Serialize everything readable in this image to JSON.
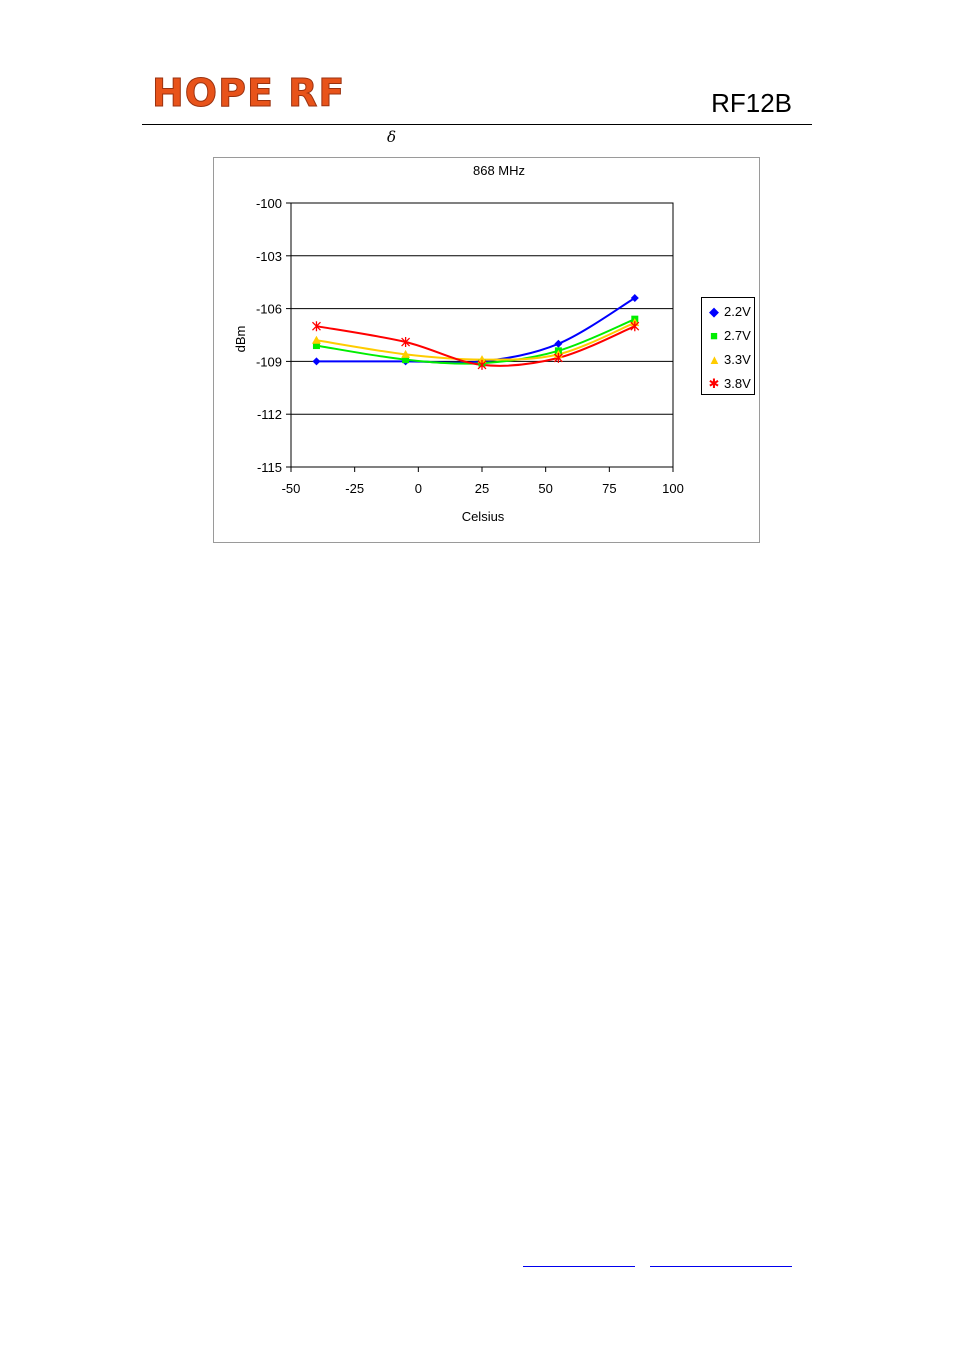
{
  "header": {
    "logo_text": "HOPE RF",
    "doc_title": "RF12B",
    "symbol": "δ",
    "logo_color": "#e8531a",
    "rule_color": "#000000"
  },
  "chart_data": {
    "type": "line",
    "title": "868 MHz",
    "xlabel": "Celsius",
    "ylabel": "dBm",
    "xlim": [
      -50,
      100
    ],
    "ylim": [
      -115,
      -100
    ],
    "x_ticks": [
      -50,
      -25,
      0,
      25,
      50,
      75,
      100
    ],
    "y_ticks": [
      -100,
      -103,
      -106,
      -109,
      -112,
      -115
    ],
    "x_tick_labels": [
      "-50",
      "-25",
      "0",
      "25",
      "50",
      "75",
      "100"
    ],
    "y_tick_labels": [
      "-100",
      "-103",
      "-106",
      "-109",
      "-112",
      "-115"
    ],
    "grid": "horizontal",
    "legend_position": "right",
    "x": [
      -40,
      -5,
      25,
      55,
      85
    ],
    "series": [
      {
        "name": "2.2V",
        "values": [
          -109.0,
          -109.0,
          -109.0,
          -108.0,
          -105.4
        ],
        "color": "#0000ff",
        "marker": "diamond"
      },
      {
        "name": "2.7V",
        "values": [
          -108.1,
          -108.9,
          -109.1,
          -108.4,
          -106.6
        ],
        "color": "#00ee00",
        "marker": "square"
      },
      {
        "name": "3.3V",
        "values": [
          -107.8,
          -108.6,
          -108.9,
          -108.6,
          -106.8
        ],
        "color": "#ffcc00",
        "marker": "triangle"
      },
      {
        "name": "3.8V",
        "values": [
          -107.0,
          -107.9,
          -109.2,
          -108.8,
          -107.0
        ],
        "color": "#ff0000",
        "marker": "star"
      }
    ]
  },
  "footer": {
    "link_color": "#0000ee"
  }
}
